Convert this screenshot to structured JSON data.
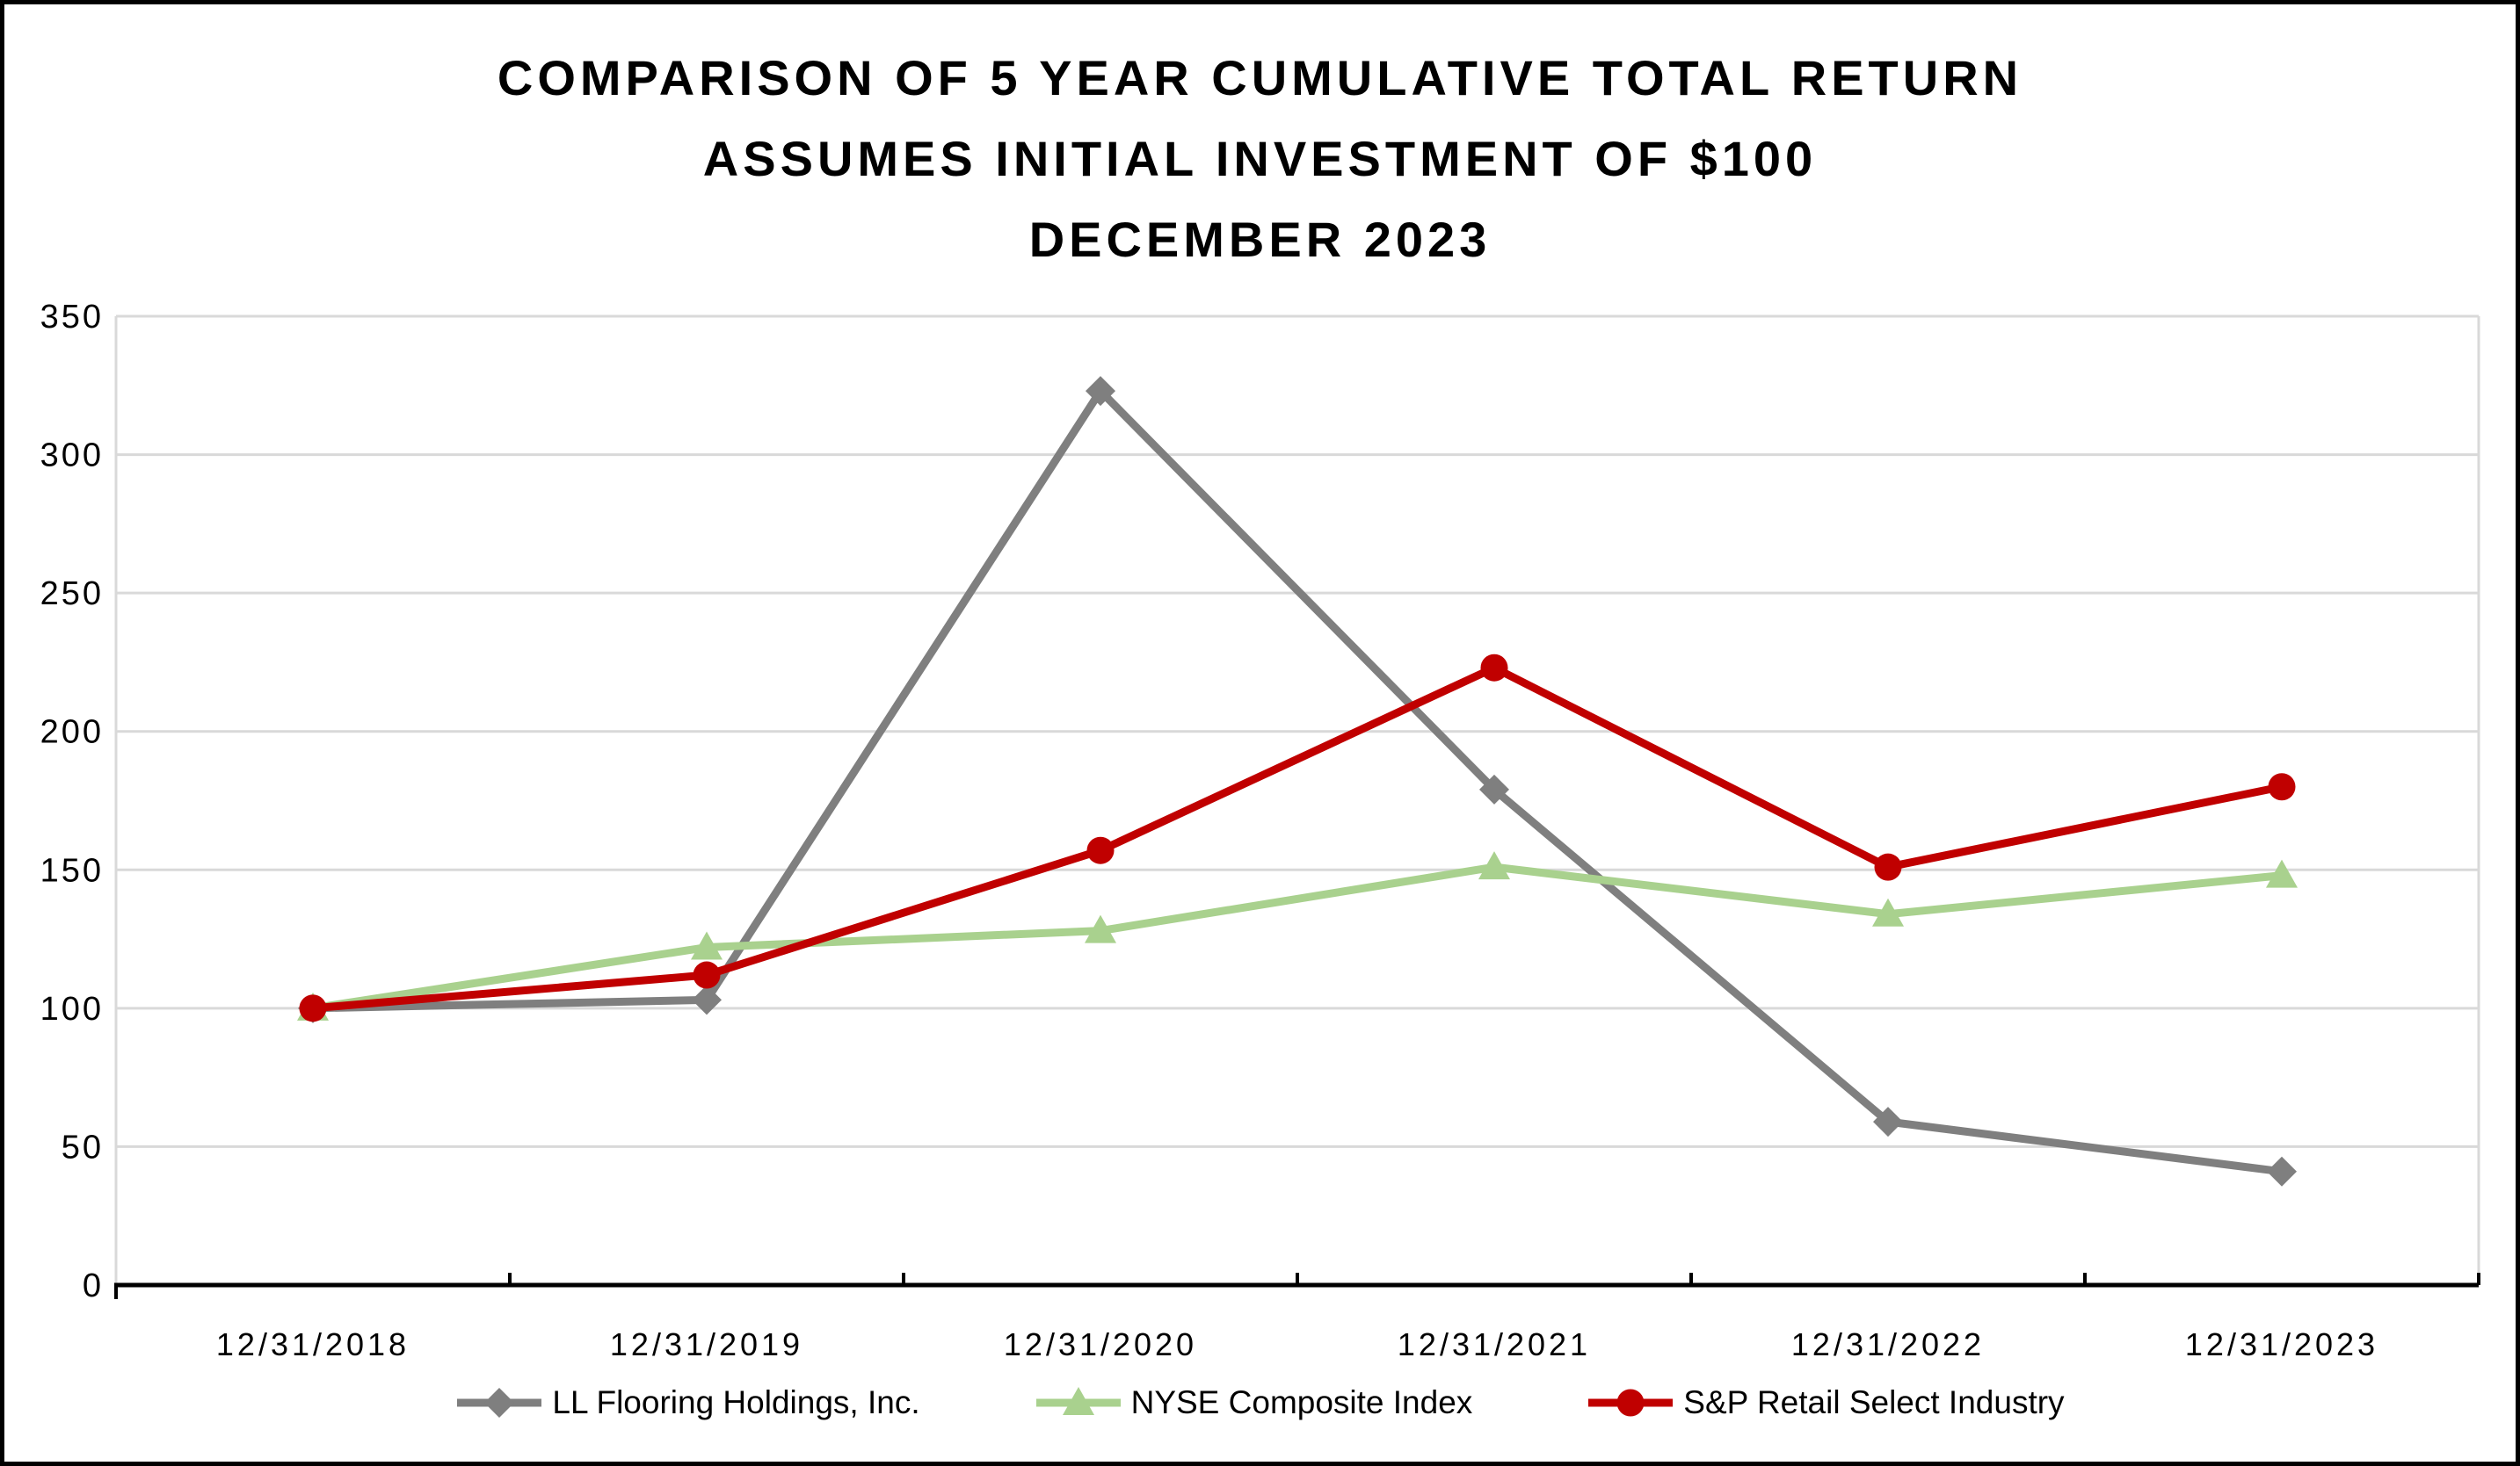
{
  "title": {
    "line1": "COMPARISON OF 5 YEAR CUMULATIVE TOTAL RETURN",
    "line2": "ASSUMES INITIAL INVESTMENT OF $100",
    "line3": "DECEMBER 2023"
  },
  "chart_data": {
    "type": "line",
    "title": "COMPARISON OF 5 YEAR CUMULATIVE TOTAL RETURN\nASSUMES INITIAL INVESTMENT OF $100\nDECEMBER 2023",
    "categories": [
      "12/31/2018",
      "12/31/2019",
      "12/31/2020",
      "12/31/2021",
      "12/31/2022",
      "12/31/2023"
    ],
    "series": [
      {
        "name": "LL Flooring Holdings, Inc.",
        "color": "#7F7F7F",
        "marker": "diamond",
        "values": [
          100,
          103,
          323,
          179,
          59,
          41
        ]
      },
      {
        "name": "NYSE Composite Index",
        "color": "#A9D18E",
        "marker": "triangle",
        "values": [
          100,
          122,
          128,
          151,
          134,
          148
        ]
      },
      {
        "name": "S&P Retail Select Industry",
        "color": "#C00000",
        "marker": "circle",
        "values": [
          100,
          112,
          157,
          223,
          151,
          180
        ]
      }
    ],
    "xlabel": "",
    "ylabel": "",
    "ylim": [
      0,
      350
    ],
    "ytick_step": 50,
    "y_tick_labels": [
      "0",
      "50",
      "100",
      "150",
      "200",
      "250",
      "300",
      "350"
    ],
    "grid": true,
    "legend_position": "bottom",
    "colors": {
      "gridline": "#D9D9D9",
      "axis": "#000000",
      "text": "#000000",
      "background": "#FFFFFF",
      "frame_border": "#000000"
    }
  }
}
